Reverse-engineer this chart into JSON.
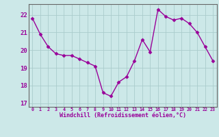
{
  "x": [
    0,
    1,
    2,
    3,
    4,
    5,
    6,
    7,
    8,
    9,
    10,
    11,
    12,
    13,
    14,
    15,
    16,
    17,
    18,
    19,
    20,
    21,
    22,
    23
  ],
  "y": [
    21.8,
    20.9,
    20.2,
    19.8,
    19.7,
    19.7,
    19.5,
    19.3,
    19.1,
    17.6,
    17.4,
    18.2,
    18.5,
    19.4,
    20.6,
    19.9,
    22.3,
    21.9,
    21.7,
    21.8,
    21.5,
    21.0,
    20.2,
    19.4
  ],
  "line_color": "#990099",
  "marker": "D",
  "marker_size": 2.5,
  "bg_color": "#cce8e8",
  "grid_color": "#aacccc",
  "xlabel": "Windchill (Refroidissement éolien,°C)",
  "xlabel_color": "#990099",
  "tick_color": "#990099",
  "ylim": [
    16.8,
    22.6
  ],
  "xlim": [
    -0.5,
    23.5
  ],
  "yticks": [
    17,
    18,
    19,
    20,
    21,
    22
  ],
  "xticks": [
    0,
    1,
    2,
    3,
    4,
    5,
    6,
    7,
    8,
    9,
    10,
    11,
    12,
    13,
    14,
    15,
    16,
    17,
    18,
    19,
    20,
    21,
    22,
    23
  ],
  "spine_color": "#666666",
  "line_width": 1.0
}
